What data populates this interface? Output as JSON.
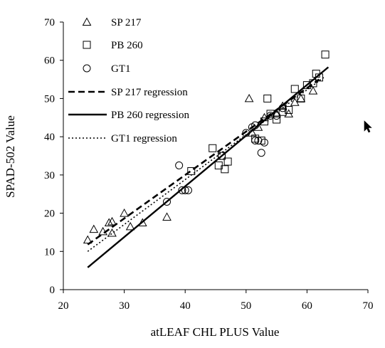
{
  "chart_data": {
    "type": "scatter",
    "title": "",
    "xlabel": "atLEAF CHL PLUS Value",
    "ylabel": "SPAD-502 Value",
    "xlim": [
      20,
      70
    ],
    "ylim": [
      0,
      70
    ],
    "xticks": [
      "20",
      "30",
      "40",
      "50",
      "60",
      "70"
    ],
    "yticks": [
      "0",
      "10",
      "20",
      "30",
      "40",
      "50",
      "60",
      "70"
    ],
    "grid": false,
    "legend_position": "top-left",
    "series": [
      {
        "name": "SP 217",
        "marker": "triangle",
        "points": [
          [
            24.0,
            13.0
          ],
          [
            25.0,
            15.8
          ],
          [
            26.5,
            15.2
          ],
          [
            27.5,
            17.5
          ],
          [
            28.0,
            14.8
          ],
          [
            28.0,
            17.8
          ],
          [
            30.0,
            20.0
          ],
          [
            31.0,
            16.5
          ],
          [
            33.0,
            17.5
          ],
          [
            37.0,
            19.0
          ],
          [
            50.5,
            50.0
          ],
          [
            51.0,
            41.0
          ],
          [
            52.0,
            42.5
          ],
          [
            53.0,
            45.0
          ],
          [
            55.0,
            46.0
          ],
          [
            56.0,
            48.0
          ],
          [
            57.0,
            46.0
          ],
          [
            58.0,
            49.0
          ],
          [
            59.0,
            50.0
          ],
          [
            61.0,
            52.0
          ]
        ]
      },
      {
        "name": "PB 260",
        "marker": "square",
        "points": [
          [
            41.0,
            31.0
          ],
          [
            44.5,
            37.0
          ],
          [
            45.5,
            32.5
          ],
          [
            46.0,
            35.0
          ],
          [
            46.5,
            31.5
          ],
          [
            47.0,
            33.5
          ],
          [
            51.5,
            39.5
          ],
          [
            52.5,
            39.0
          ],
          [
            53.0,
            44.0
          ],
          [
            53.5,
            50.0
          ],
          [
            54.0,
            46.0
          ],
          [
            55.0,
            44.5
          ],
          [
            56.0,
            46.5
          ],
          [
            57.0,
            47.0
          ],
          [
            58.0,
            52.5
          ],
          [
            59.0,
            50.0
          ],
          [
            60.0,
            53.5
          ],
          [
            61.0,
            54.0
          ],
          [
            61.5,
            56.5
          ],
          [
            62.0,
            55.5
          ],
          [
            63.0,
            61.5
          ]
        ]
      },
      {
        "name": "GT1",
        "marker": "circle",
        "points": [
          [
            37.0,
            23.0
          ],
          [
            39.0,
            32.5
          ],
          [
            39.5,
            26.0
          ],
          [
            40.0,
            26.0
          ],
          [
            40.5,
            26.0
          ],
          [
            46.0,
            35.0
          ],
          [
            50.0,
            41.0
          ],
          [
            51.0,
            42.5
          ],
          [
            51.5,
            43.0
          ],
          [
            51.5,
            39.0
          ],
          [
            52.0,
            39.0
          ],
          [
            52.5,
            35.8
          ],
          [
            53.0,
            38.5
          ],
          [
            54.0,
            45.5
          ],
          [
            55.0,
            45.5
          ],
          [
            56.0,
            47.5
          ]
        ]
      }
    ],
    "regressions": [
      {
        "name": "SP 217 regression",
        "style": "dashed",
        "from": [
          24,
          11.8
        ],
        "to": [
          62,
          55.0
        ]
      },
      {
        "name": "PB 260 regression",
        "style": "solid",
        "from": [
          24,
          5.8
        ],
        "to": [
          63.5,
          58.2
        ]
      },
      {
        "name": "GT1 regression",
        "style": "dotted",
        "from": [
          24,
          10.0
        ],
        "to": [
          63,
          55.8
        ]
      }
    ]
  }
}
